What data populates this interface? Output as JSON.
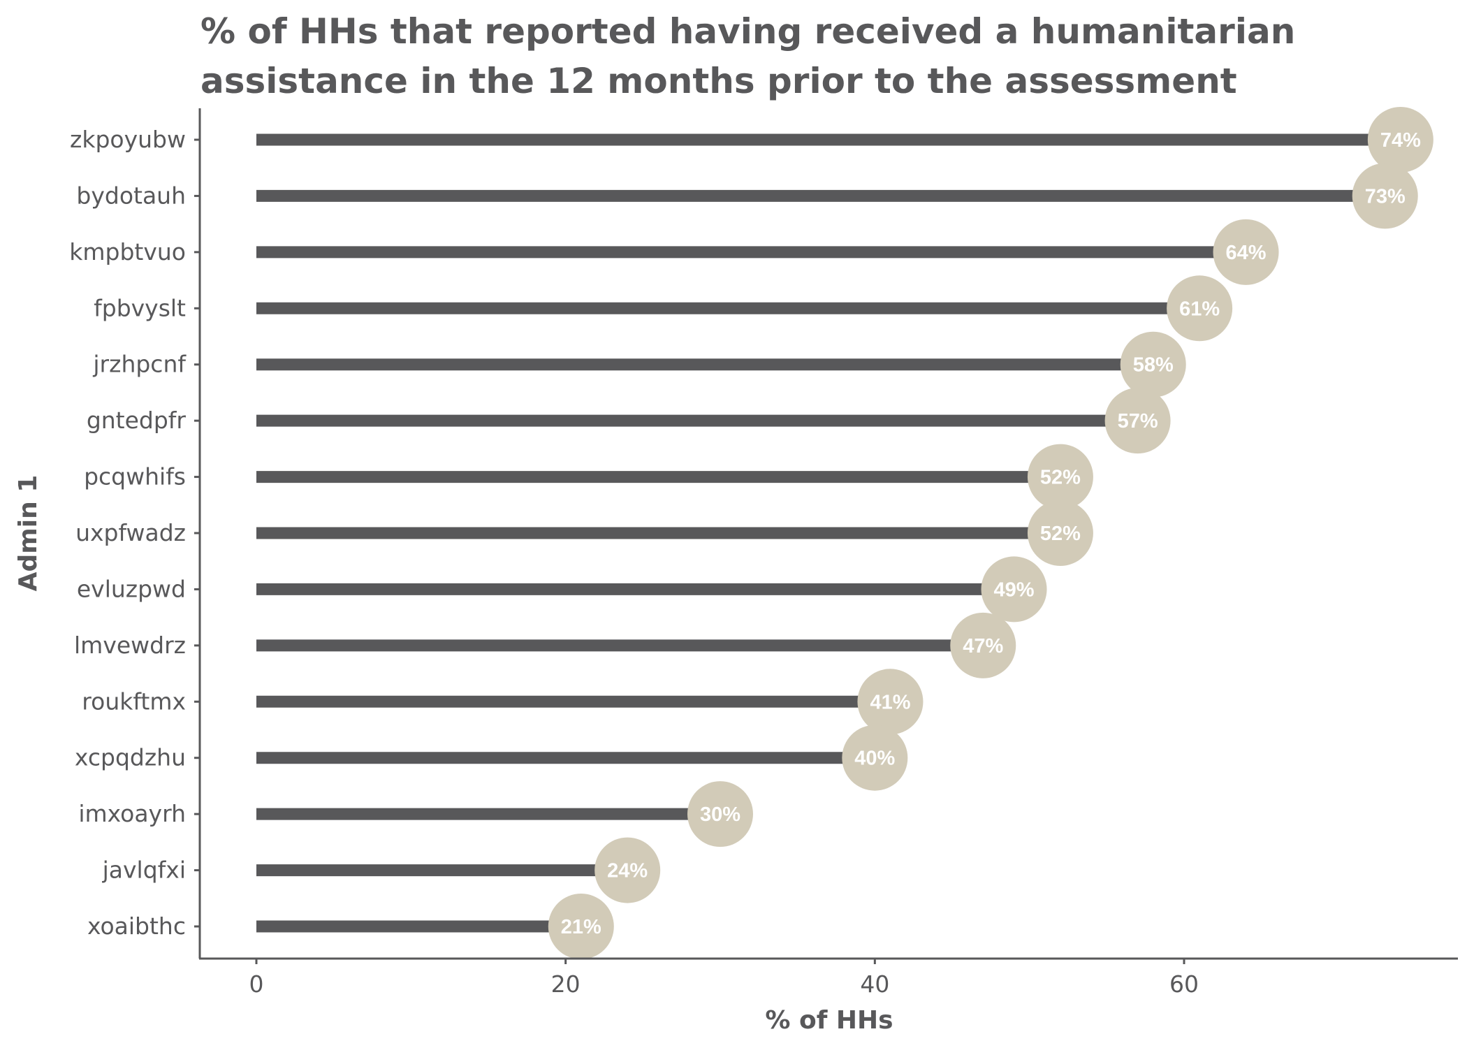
{
  "chart_data": {
    "type": "lollipop",
    "title": "% of HHs that reported having received a humanitarian assistance in the 12 months prior to the assessment",
    "title_lines": [
      "% of HHs that reported having received a humanitarian",
      "assistance in the 12 months prior to the assessment"
    ],
    "xlabel": "% of HHs",
    "ylabel": "Admin 1",
    "xlim": [
      -4,
      78
    ],
    "x_ticks": [
      0,
      20,
      40,
      60
    ],
    "grid": false,
    "categories": [
      "zkpoyubw",
      "bydotauh",
      "kmpbtvuo",
      "fpbvyslt",
      "jrzhpcnf",
      "gntedpfr",
      "pcqwhifs",
      "uxpfwadz",
      "evluzpwd",
      "lmvewdrz",
      "roukftmx",
      "xcpqdzhu",
      "imxoayrh",
      "javlqfxi",
      "xoaibthc"
    ],
    "values": [
      74,
      73,
      64,
      61,
      58,
      57,
      52,
      52,
      49,
      47,
      41,
      40,
      30,
      24,
      21
    ],
    "labels": [
      "74%",
      "73%",
      "64%",
      "61%",
      "58%",
      "57%",
      "52%",
      "52%",
      "49%",
      "47%",
      "41%",
      "40%",
      "30%",
      "24%",
      "21%"
    ],
    "colors": {
      "bar": "#58585a",
      "point": "#d2cbb8",
      "label": "#ffffff",
      "text": "#58585a"
    }
  }
}
